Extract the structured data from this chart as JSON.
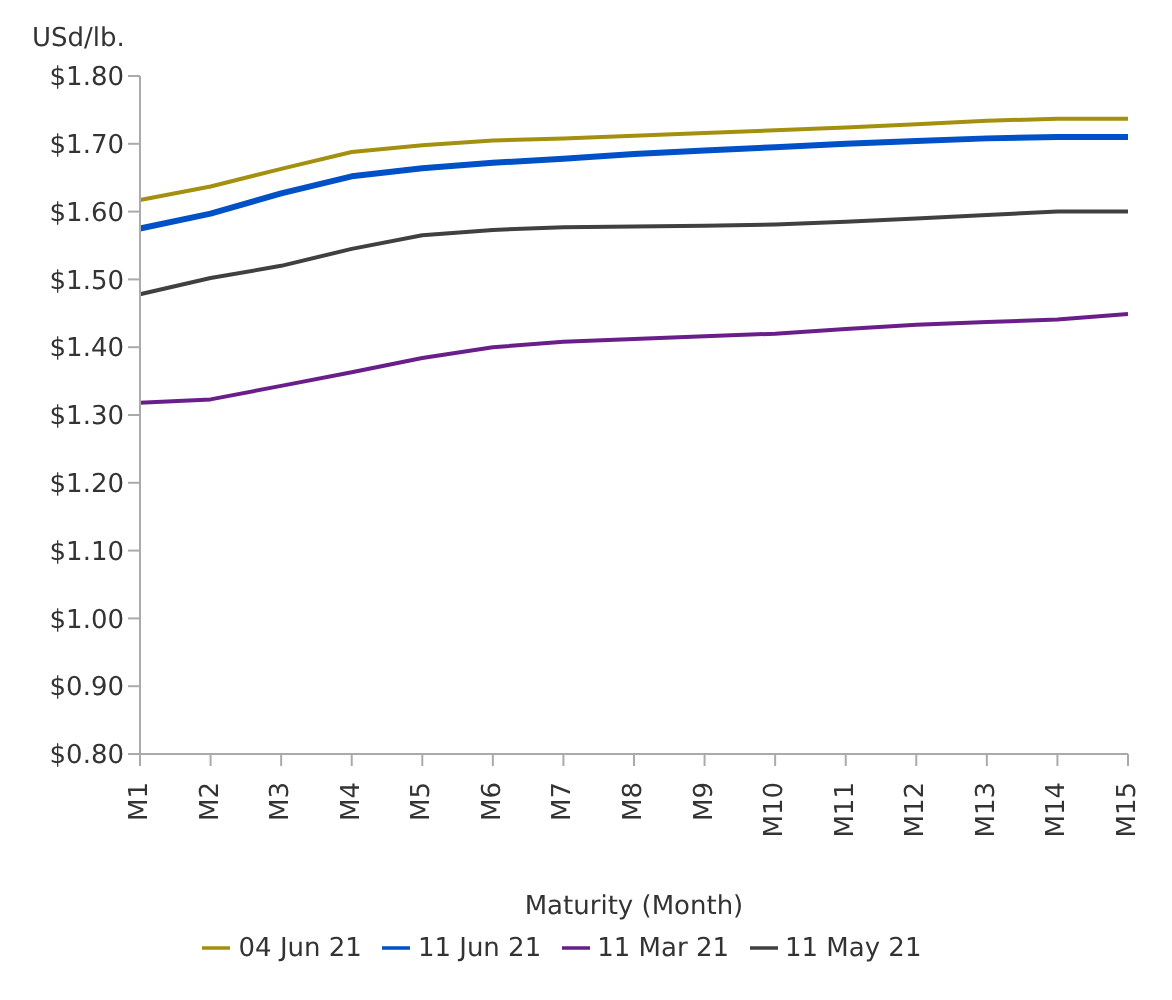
{
  "chart_data": {
    "type": "line",
    "ylabel": "USd/lb.",
    "xlabel": "Maturity (Month)",
    "categories": [
      "M1",
      "M2",
      "M3",
      "M4",
      "M5",
      "M6",
      "M7",
      "M8",
      "M9",
      "M10",
      "M11",
      "M12",
      "M13",
      "M14",
      "M15"
    ],
    "series": [
      {
        "name": "11 Jun 21",
        "color": "#0050c8",
        "values": [
          1.575,
          1.597,
          1.627,
          1.652,
          1.664,
          1.672,
          1.678,
          1.685,
          1.69,
          1.695,
          1.7,
          1.704,
          1.708,
          1.71,
          1.71
        ]
      },
      {
        "name": "04 Jun 21",
        "color": "#a4900f",
        "values": [
          1.617,
          1.637,
          1.663,
          1.688,
          1.698,
          1.705,
          1.708,
          1.712,
          1.716,
          1.72,
          1.724,
          1.729,
          1.734,
          1.737,
          1.737
        ]
      },
      {
        "name": "11 May 21",
        "color": "#404040",
        "values": [
          1.478,
          1.502,
          1.52,
          1.545,
          1.565,
          1.573,
          1.577,
          1.578,
          1.579,
          1.581,
          1.585,
          1.59,
          1.595,
          1.6,
          1.6
        ]
      },
      {
        "name": "11 Mar 21",
        "color": "#6a1e8a",
        "values": [
          1.318,
          1.323,
          1.343,
          1.363,
          1.384,
          1.4,
          1.408,
          1.412,
          1.416,
          1.42,
          1.427,
          1.433,
          1.437,
          1.441,
          1.449
        ]
      }
    ],
    "ylim": [
      0.8,
      1.8
    ],
    "yticks": [
      {
        "value": 0.8,
        "label": "$0.80"
      },
      {
        "value": 0.9,
        "label": "$0.90"
      },
      {
        "value": 1.0,
        "label": "$1.00"
      },
      {
        "value": 1.1,
        "label": "$1.10"
      },
      {
        "value": 1.2,
        "label": "$1.20"
      },
      {
        "value": 1.3,
        "label": "$1.30"
      },
      {
        "value": 1.4,
        "label": "$1.40"
      },
      {
        "value": 1.5,
        "label": "$1.50"
      },
      {
        "value": 1.6,
        "label": "$1.60"
      },
      {
        "value": 1.7,
        "label": "$1.70"
      },
      {
        "value": 1.8,
        "label": "$1.80"
      }
    ],
    "grid": false,
    "legend": "bottom",
    "marker": "none",
    "line_style": "solid"
  }
}
